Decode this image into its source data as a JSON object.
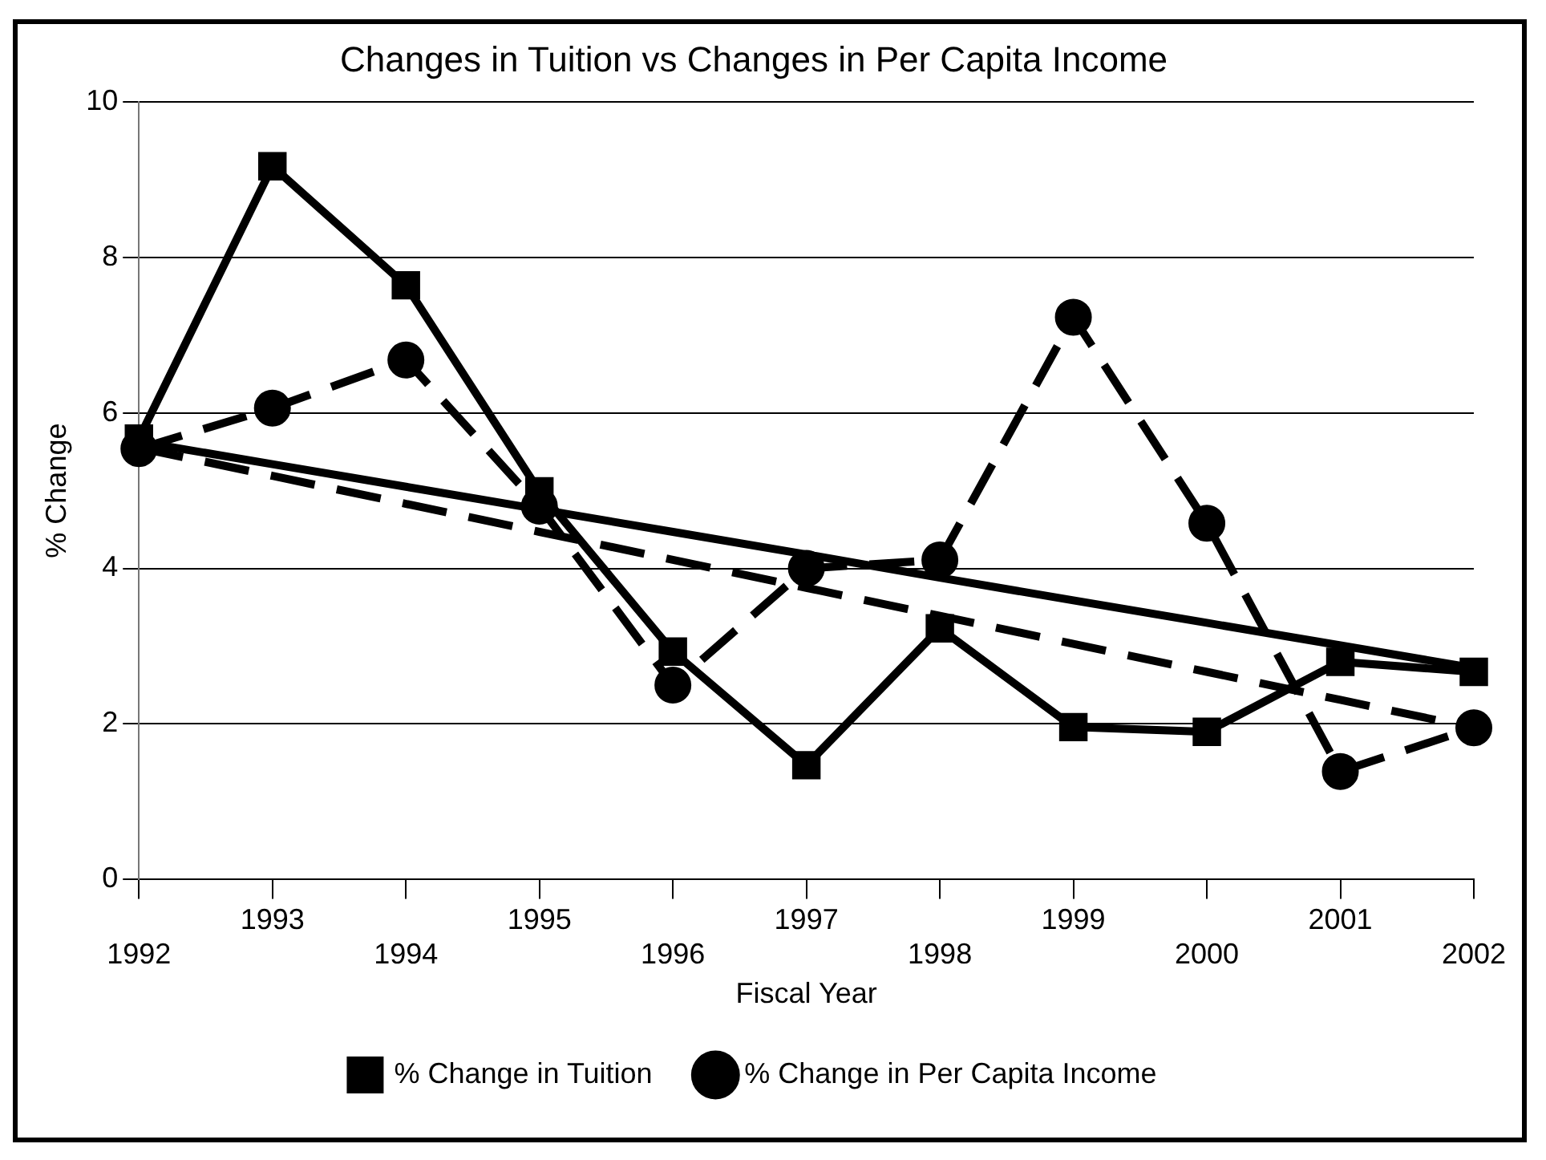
{
  "chart_data": {
    "type": "line",
    "title": "Changes in Tuition vs Changes in Per Capita Income",
    "xlabel": "Fiscal Year",
    "ylabel": "% Change",
    "categories": [
      "1992",
      "1993",
      "1994",
      "1995",
      "1996",
      "1997",
      "1998",
      "1999",
      "2000",
      "2001",
      "2002"
    ],
    "series": [
      {
        "name": "% Change in Tuition",
        "color": "#000000",
        "marker": "square",
        "line_style": "solid",
        "values": [
          5.67,
          9.17,
          7.64,
          4.99,
          2.93,
          1.47,
          3.23,
          1.96,
          1.9,
          2.8,
          2.67
        ]
      },
      {
        "name": "% Change in Per Capita Income",
        "color": "#000000",
        "marker": "circle",
        "line_style": "dashed",
        "values": [
          5.54,
          6.06,
          6.68,
          4.8,
          2.5,
          4.0,
          4.11,
          7.23,
          4.58,
          1.39,
          1.95
        ]
      },
      {
        "color": "#000000",
        "marker": "none",
        "line_style": "solid",
        "values": [
          5.63,
          5.34,
          5.05,
          4.76,
          4.47,
          4.18,
          3.88,
          3.59,
          3.3,
          3.01,
          2.72
        ]
      },
      {
        "color": "#000000",
        "marker": "none",
        "line_style": "dashed",
        "values": [
          5.55,
          5.19,
          4.83,
          4.47,
          4.11,
          3.75,
          3.39,
          3.03,
          2.67,
          2.31,
          1.95
        ]
      }
    ],
    "ylim": [
      0,
      10
    ],
    "yticks": [
      0,
      2,
      4,
      6,
      8,
      10
    ],
    "grid": "y",
    "legend": "bottom"
  }
}
